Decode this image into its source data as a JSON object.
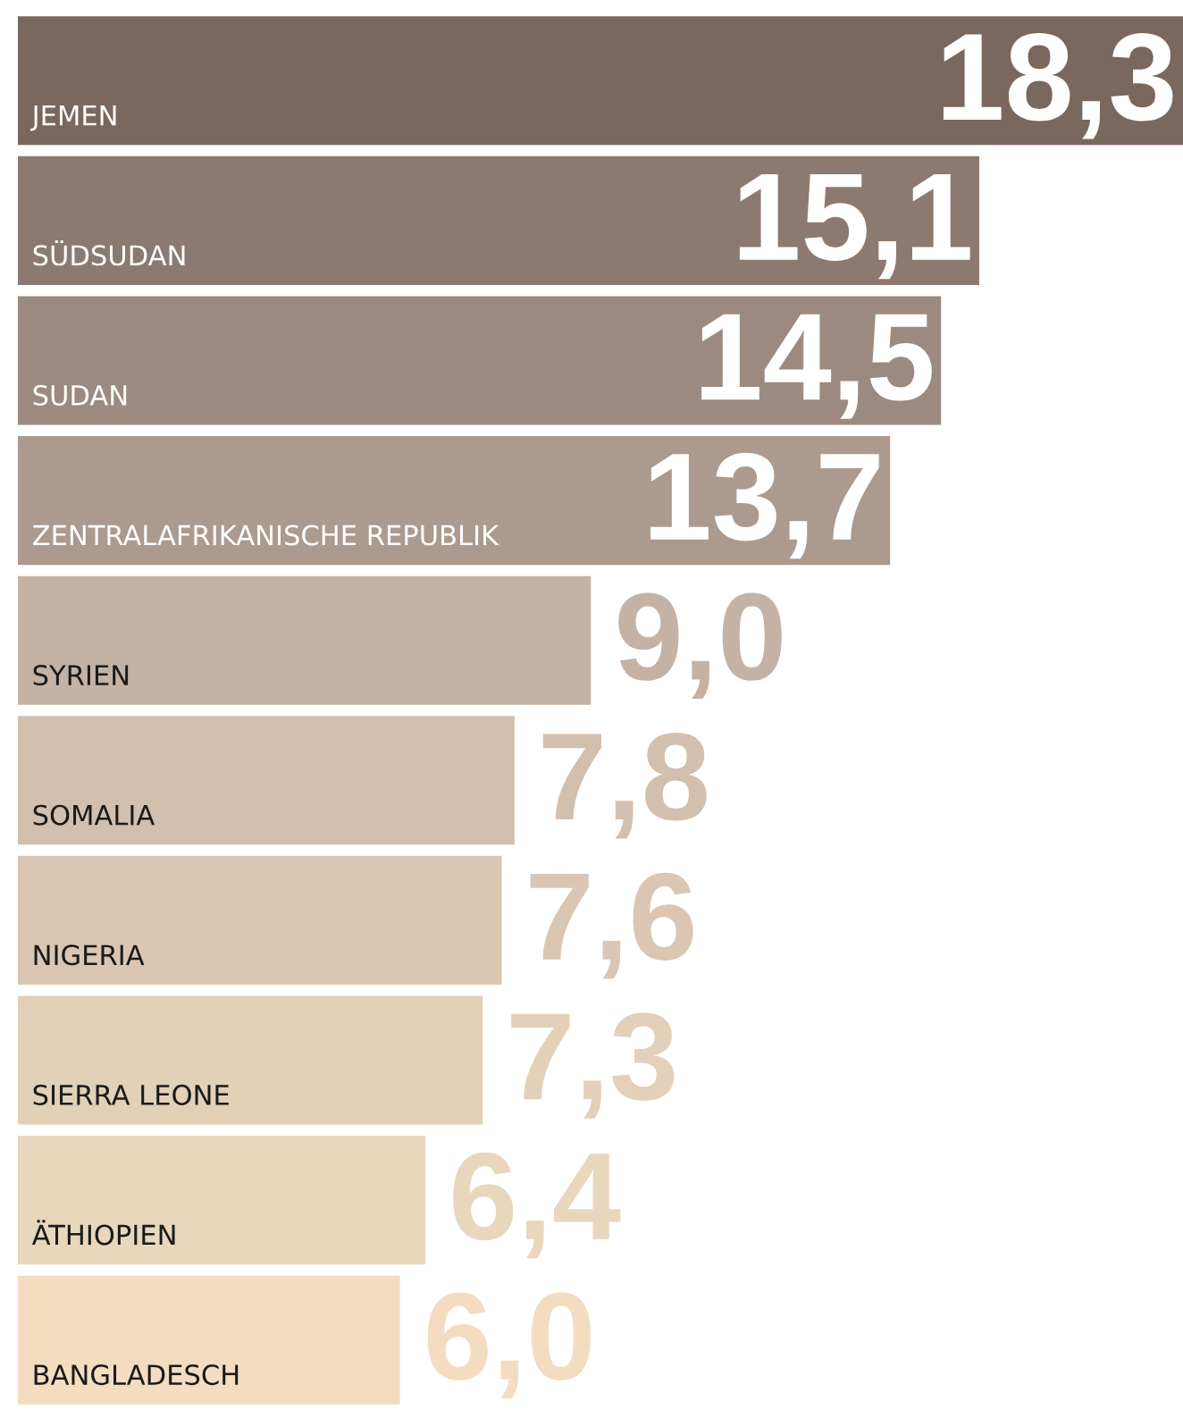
{
  "chart_data": {
    "type": "bar",
    "orientation": "horizontal",
    "categories": [
      "JEMEN",
      "SÜDSUDAN",
      "SUDAN",
      "ZENTRALAFRIKANISCHE REPUBLIK",
      "SYRIEN",
      "SOMALIA",
      "NIGERIA",
      "SIERRA LEONE",
      "ÄTHIOPIEN",
      "BANGLADESCH"
    ],
    "values": [
      18.3,
      15.1,
      14.5,
      13.7,
      9.0,
      7.8,
      7.6,
      7.3,
      6.4,
      6.0
    ],
    "value_labels": [
      "18,3",
      "15,1",
      "14,5",
      "13,7",
      "9,0",
      "7,8",
      "7,6",
      "7,3",
      "6,4",
      "6,0"
    ],
    "colors": [
      "#7a675e",
      "#8c7a70",
      "#9c8a80",
      "#ac9a8f",
      "#c4b3a5",
      "#d3bfae",
      "#dac6b2",
      "#e2d0b9",
      "#e8d6bd",
      "#f3dcc0"
    ],
    "legend": false
  }
}
